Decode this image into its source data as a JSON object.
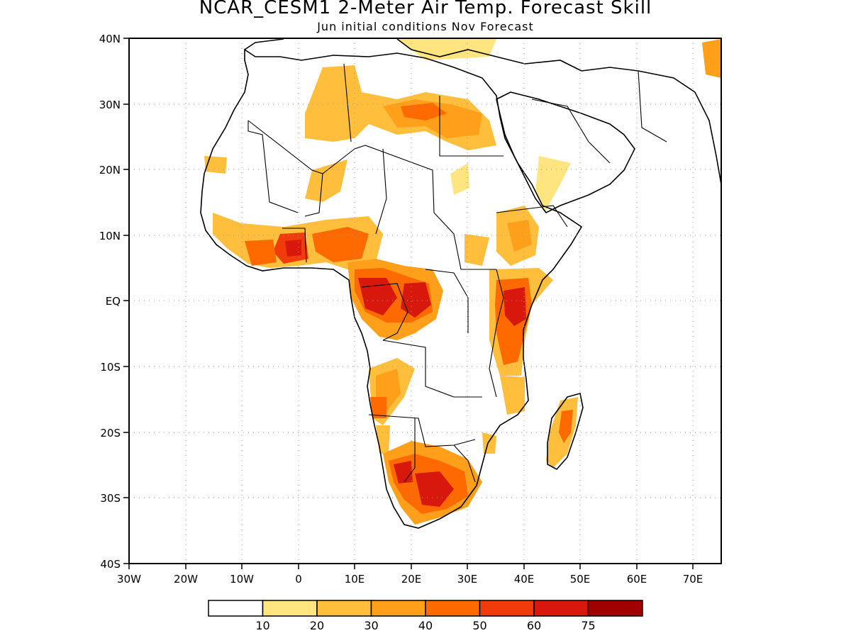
{
  "title": "NCAR_CESM1 2-Meter Air Temp. Forecast Skill",
  "subtitle": "Jun initial conditions  Nov Forecast",
  "map": {
    "lon_range": [
      -30,
      75
    ],
    "lat_range": [
      -40,
      40
    ],
    "x_ticks": [
      "30W",
      "20W",
      "10W",
      "0",
      "10E",
      "20E",
      "30E",
      "40E",
      "50E",
      "60E",
      "70E"
    ],
    "y_ticks": [
      "40N",
      "30N",
      "20N",
      "10N",
      "EQ",
      "10S",
      "20S",
      "30S",
      "40S"
    ],
    "grid": "dotted"
  },
  "colorbar": {
    "labels": [
      "10",
      "20",
      "30",
      "40",
      "50",
      "60",
      "75"
    ],
    "colors": [
      "#ffffff",
      "#ffe580",
      "#ffbe3c",
      "#ff9f1a",
      "#ff6a00",
      "#f03c0a",
      "#d8180c",
      "#a00000"
    ]
  }
}
